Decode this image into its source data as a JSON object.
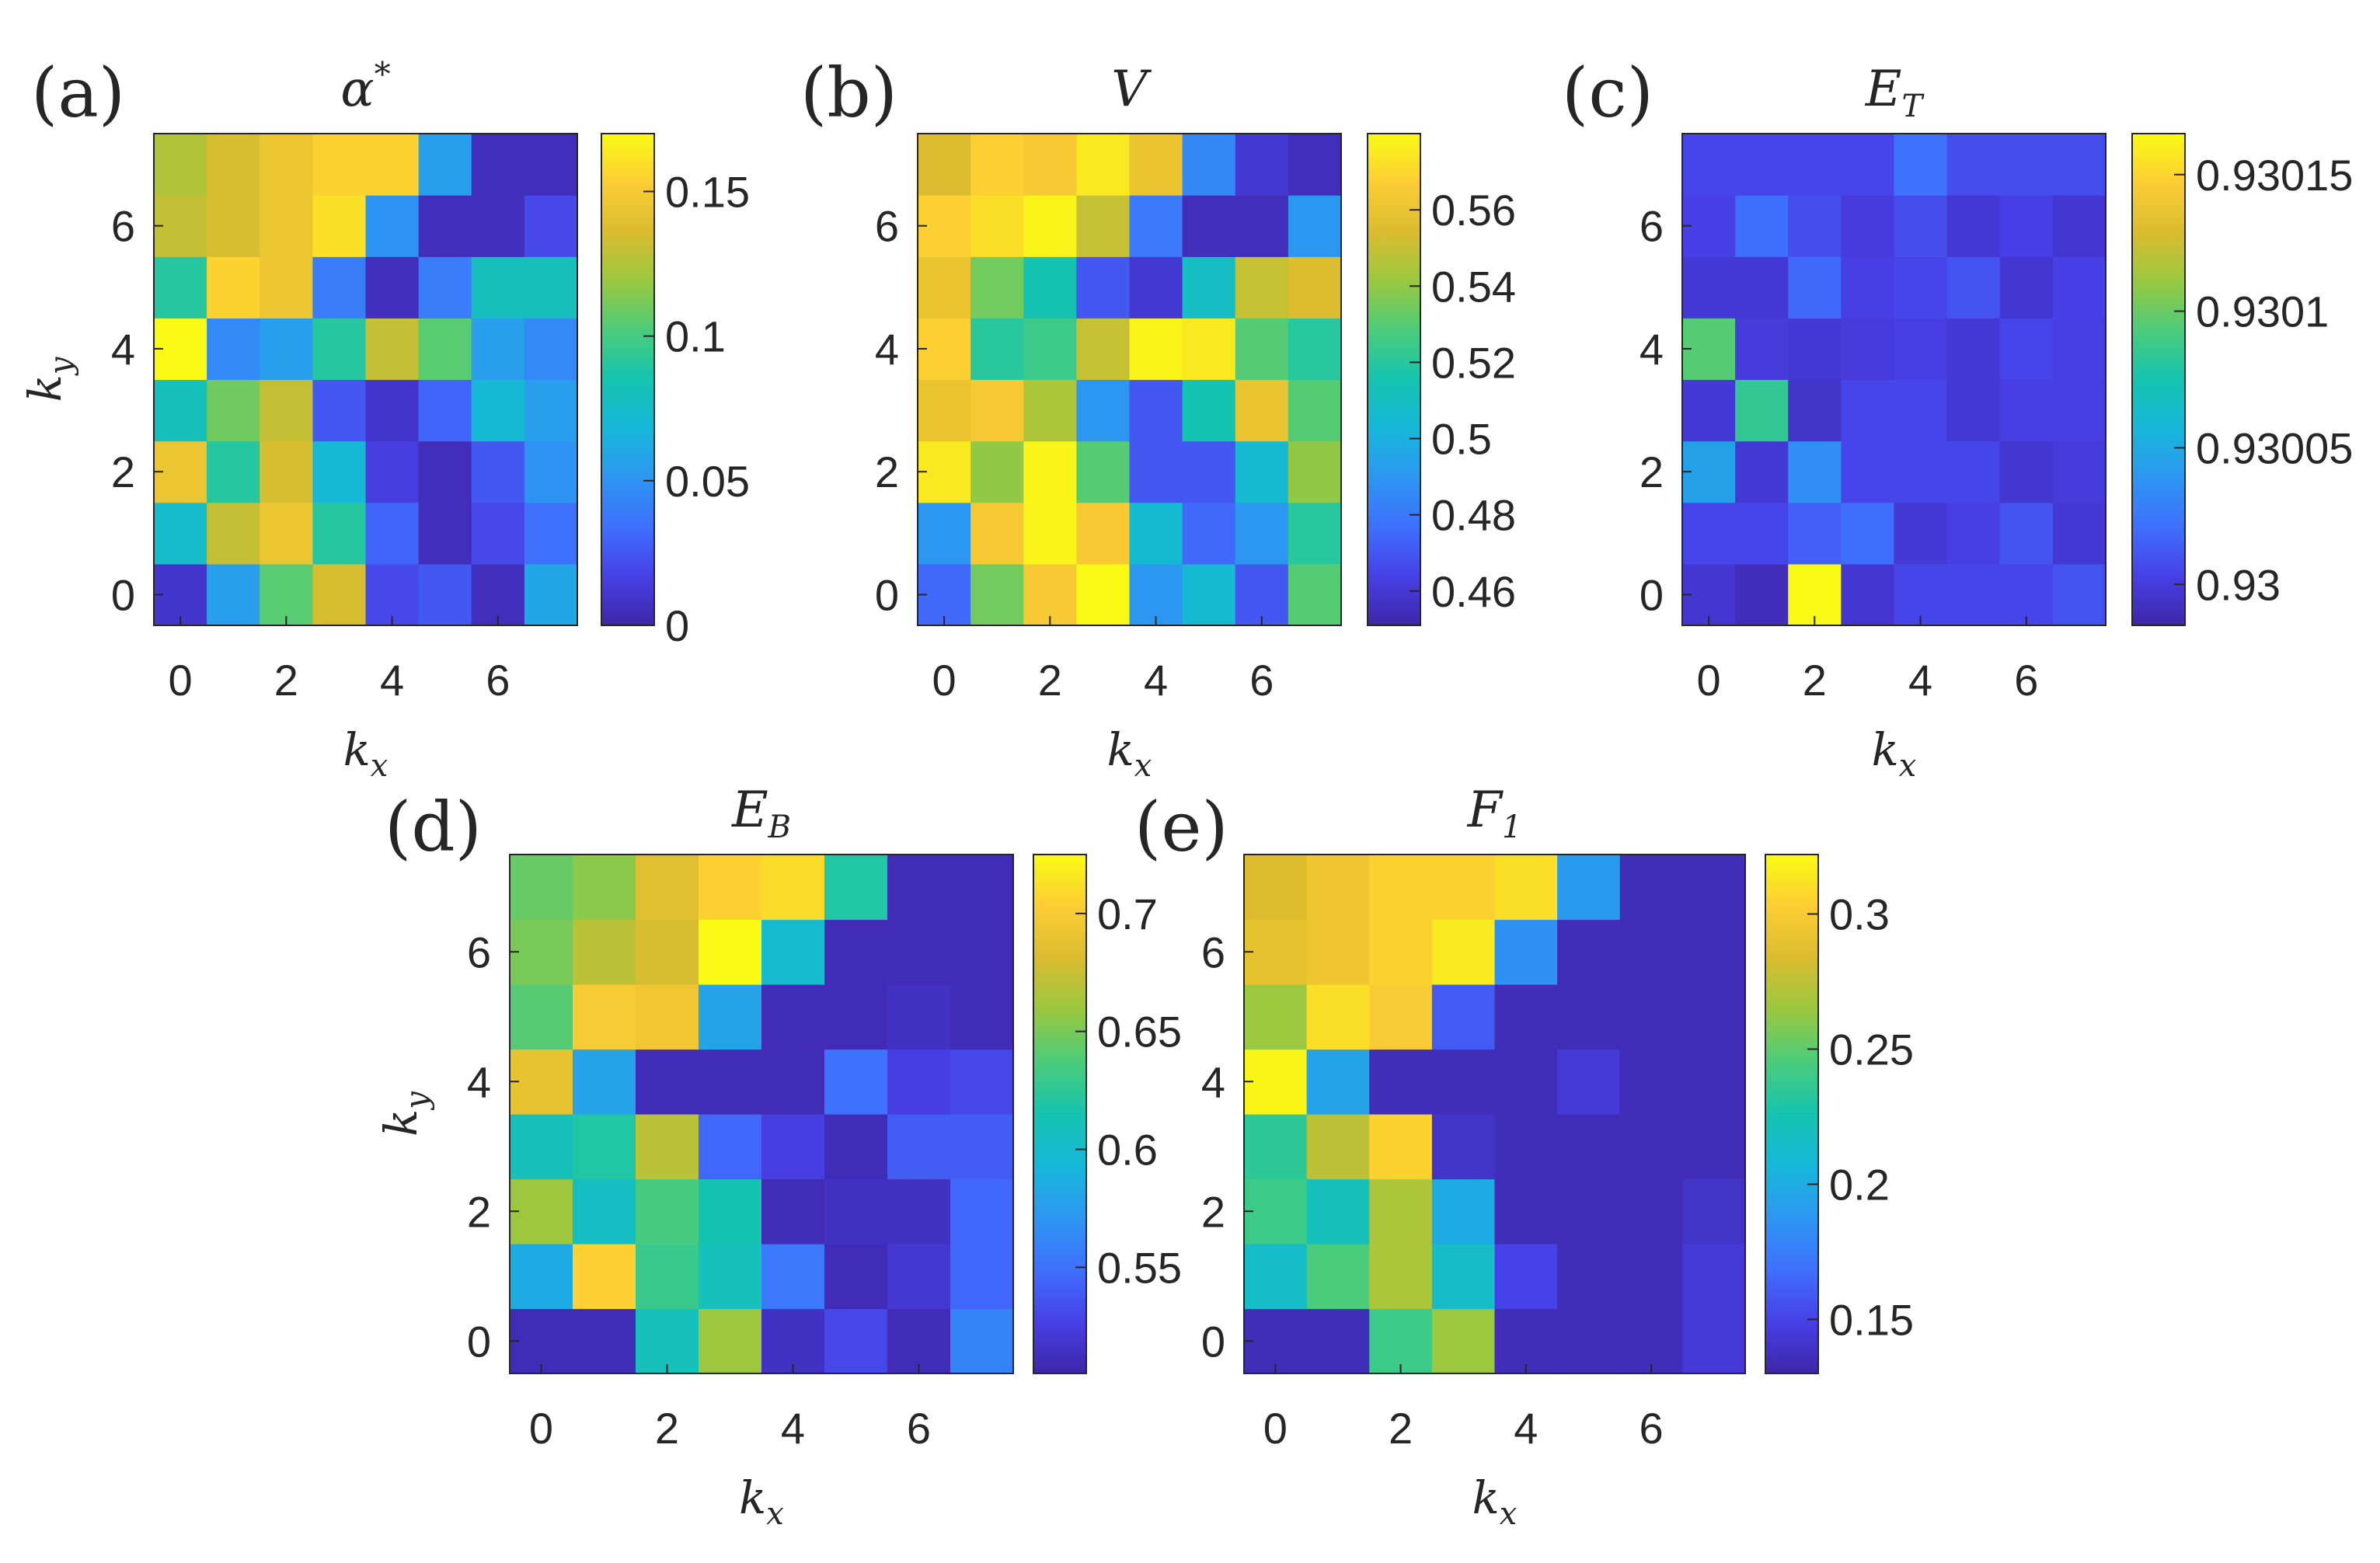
{
  "chart_data": [
    {
      "type": "heatmap",
      "panel": "(a)",
      "title": "α*",
      "title_main": "α",
      "title_sup": "*",
      "title_sub": "",
      "xlabel": "kx",
      "xlabel_main": "k",
      "xlabel_sub": "x",
      "ylabel": "ky",
      "ylabel_main": "k",
      "ylabel_sub": "y",
      "xticks": [
        0,
        2,
        4,
        6
      ],
      "yticks": [
        0,
        2,
        4,
        6
      ],
      "clim": [
        0,
        0.17
      ],
      "colorbar_ticks": [
        0,
        0.05,
        0.1,
        0.15
      ],
      "colorbar_labels": [
        "0",
        "0.05",
        "0.1",
        "0.15"
      ],
      "rows_note": "values[ky][kx]",
      "values": [
        [
          0.01,
          0.055,
          0.105,
          0.135,
          0.02,
          0.025,
          0.005,
          0.06
        ],
        [
          0.075,
          0.13,
          0.145,
          0.09,
          0.03,
          0.005,
          0.02,
          0.035
        ],
        [
          0.145,
          0.09,
          0.135,
          0.07,
          0.015,
          0.005,
          0.025,
          0.05
        ],
        [
          0.08,
          0.11,
          0.13,
          0.025,
          0.01,
          0.03,
          0.07,
          0.055
        ],
        [
          0.17,
          0.045,
          0.055,
          0.09,
          0.13,
          0.105,
          0.055,
          0.045
        ],
        [
          0.09,
          0.155,
          0.145,
          0.04,
          0.005,
          0.04,
          0.08,
          0.08
        ],
        [
          0.13,
          0.135,
          0.145,
          0.16,
          0.05,
          0.005,
          0.005,
          0.02
        ],
        [
          0.125,
          0.135,
          0.145,
          0.155,
          0.155,
          0.055,
          0.005,
          0.005
        ]
      ]
    },
    {
      "type": "heatmap",
      "panel": "(b)",
      "title": "V",
      "title_main": "V",
      "title_sup": "",
      "title_sub": "",
      "xlabel": "kx",
      "xlabel_main": "k",
      "xlabel_sub": "x",
      "ylabel": "",
      "ylabel_main": "",
      "ylabel_sub": "",
      "xticks": [
        0,
        2,
        4,
        6
      ],
      "yticks": [
        0,
        2,
        4,
        6
      ],
      "clim": [
        0.451,
        0.58
      ],
      "colorbar_ticks": [
        0.46,
        0.48,
        0.5,
        0.52,
        0.54,
        0.56
      ],
      "colorbar_labels": [
        "0.46",
        "0.48",
        "0.5",
        "0.52",
        "0.54",
        "0.56"
      ],
      "rows_note": "values[ky][kx]",
      "values": [
        [
          0.475,
          0.535,
          0.565,
          0.58,
          0.49,
          0.505,
          0.47,
          0.53
        ],
        [
          0.49,
          0.565,
          0.578,
          0.565,
          0.505,
          0.475,
          0.49,
          0.52
        ],
        [
          0.575,
          0.54,
          0.578,
          0.53,
          0.47,
          0.47,
          0.505,
          0.54
        ],
        [
          0.56,
          0.565,
          0.545,
          0.49,
          0.47,
          0.515,
          0.56,
          0.53
        ],
        [
          0.568,
          0.52,
          0.525,
          0.55,
          0.578,
          0.575,
          0.53,
          0.52
        ],
        [
          0.56,
          0.535,
          0.515,
          0.47,
          0.46,
          0.51,
          0.55,
          0.555
        ],
        [
          0.568,
          0.572,
          0.578,
          0.55,
          0.48,
          0.455,
          0.455,
          0.49
        ],
        [
          0.555,
          0.568,
          0.565,
          0.575,
          0.56,
          0.485,
          0.46,
          0.455
        ]
      ]
    },
    {
      "type": "heatmap",
      "panel": "(c)",
      "title": "ET",
      "title_main": "E",
      "title_sup": "",
      "title_sub": "T",
      "xlabel": "kx",
      "xlabel_main": "k",
      "xlabel_sub": "x",
      "ylabel": "",
      "ylabel_main": "",
      "ylabel_sub": "",
      "xticks": [
        0,
        2,
        4,
        6
      ],
      "yticks": [
        0,
        2,
        4,
        6
      ],
      "clim": [
        0.929985,
        0.930165
      ],
      "colorbar_ticks": [
        0.93,
        0.93005,
        0.9301,
        0.93015
      ],
      "colorbar_labels": [
        "0.93",
        "0.93005",
        "0.9301",
        "0.93015"
      ],
      "rows_note": "values[ky][kx]",
      "values": [
        [
          0.929997,
          0.92999,
          0.930165,
          0.929997,
          0.930005,
          0.930005,
          0.930005,
          0.93001
        ],
        [
          0.930005,
          0.930005,
          0.930015,
          0.93002,
          0.929998,
          0.930002,
          0.93001,
          0.929998
        ],
        [
          0.930045,
          0.929998,
          0.930035,
          0.930005,
          0.930005,
          0.930005,
          0.929997,
          0.93
        ],
        [
          0.929998,
          0.930085,
          0.929995,
          0.930005,
          0.930005,
          0.929998,
          0.930002,
          0.930002
        ],
        [
          0.930095,
          0.93,
          0.929998,
          0.93,
          0.930002,
          0.929998,
          0.930005,
          0.930002
        ],
        [
          0.929998,
          0.929998,
          0.930018,
          0.930002,
          0.930005,
          0.93001,
          0.929997,
          0.930003
        ],
        [
          0.930003,
          0.93002,
          0.930008,
          0.93,
          0.930008,
          0.929998,
          0.930003,
          0.929997
        ],
        [
          0.930005,
          0.930005,
          0.930005,
          0.930005,
          0.930022,
          0.930008,
          0.930008,
          0.930008
        ]
      ]
    },
    {
      "type": "heatmap",
      "panel": "(d)",
      "title": "EB",
      "title_main": "E",
      "title_sup": "",
      "title_sub": "B",
      "xlabel": "kx",
      "xlabel_main": "k",
      "xlabel_sub": "x",
      "ylabel": "ky",
      "ylabel_main": "k",
      "ylabel_sub": "y",
      "xticks": [
        0,
        2,
        4,
        6
      ],
      "yticks": [
        0,
        2,
        4,
        6
      ],
      "clim": [
        0.505,
        0.725
      ],
      "colorbar_ticks": [
        0.55,
        0.6,
        0.65,
        0.7
      ],
      "colorbar_labels": [
        "0.55",
        "0.6",
        "0.65",
        "0.7"
      ],
      "rows_note": "values[ky][kx]",
      "values": [
        [
          0.51,
          0.51,
          0.61,
          0.66,
          0.515,
          0.53,
          0.51,
          0.56
        ],
        [
          0.585,
          0.705,
          0.63,
          0.61,
          0.555,
          0.51,
          0.52,
          0.545
        ],
        [
          0.66,
          0.605,
          0.635,
          0.615,
          0.51,
          0.515,
          0.515,
          0.545
        ],
        [
          0.61,
          0.62,
          0.67,
          0.545,
          0.525,
          0.51,
          0.54,
          0.54
        ],
        [
          0.69,
          0.58,
          0.51,
          0.51,
          0.51,
          0.55,
          0.525,
          0.53
        ],
        [
          0.64,
          0.7,
          0.695,
          0.58,
          0.51,
          0.51,
          0.515,
          0.51
        ],
        [
          0.65,
          0.67,
          0.68,
          0.725,
          0.6,
          0.51,
          0.51,
          0.51
        ],
        [
          0.645,
          0.655,
          0.685,
          0.705,
          0.71,
          0.62,
          0.51,
          0.51
        ]
      ]
    },
    {
      "type": "heatmap",
      "panel": "(e)",
      "title": "F1",
      "title_main": "F",
      "title_sup": "",
      "title_sub": "1",
      "xlabel": "kx",
      "xlabel_main": "k",
      "xlabel_sub": "x",
      "ylabel": "",
      "ylabel_main": "",
      "ylabel_sub": "",
      "xticks": [
        0,
        2,
        4,
        6
      ],
      "yticks": [
        0,
        2,
        4,
        6
      ],
      "clim": [
        0.13,
        0.322
      ],
      "colorbar_ticks": [
        0.15,
        0.2,
        0.25,
        0.3
      ],
      "colorbar_labels": [
        "0.15",
        "0.2",
        "0.25",
        "0.3"
      ],
      "rows_note": "values[ky][kx]",
      "values": [
        [
          0.135,
          0.135,
          0.24,
          0.265,
          0.135,
          0.135,
          0.135,
          0.145
        ],
        [
          0.215,
          0.245,
          0.27,
          0.215,
          0.15,
          0.135,
          0.135,
          0.145
        ],
        [
          0.24,
          0.22,
          0.27,
          0.2,
          0.135,
          0.135,
          0.135,
          0.14
        ],
        [
          0.235,
          0.275,
          0.305,
          0.14,
          0.135,
          0.135,
          0.135,
          0.135
        ],
        [
          0.32,
          0.195,
          0.135,
          0.135,
          0.135,
          0.145,
          0.135,
          0.135
        ],
        [
          0.265,
          0.31,
          0.3,
          0.16,
          0.135,
          0.135,
          0.135,
          0.135
        ],
        [
          0.29,
          0.295,
          0.305,
          0.315,
          0.185,
          0.135,
          0.135,
          0.135
        ],
        [
          0.285,
          0.295,
          0.305,
          0.305,
          0.31,
          0.19,
          0.135,
          0.135
        ]
      ]
    }
  ]
}
